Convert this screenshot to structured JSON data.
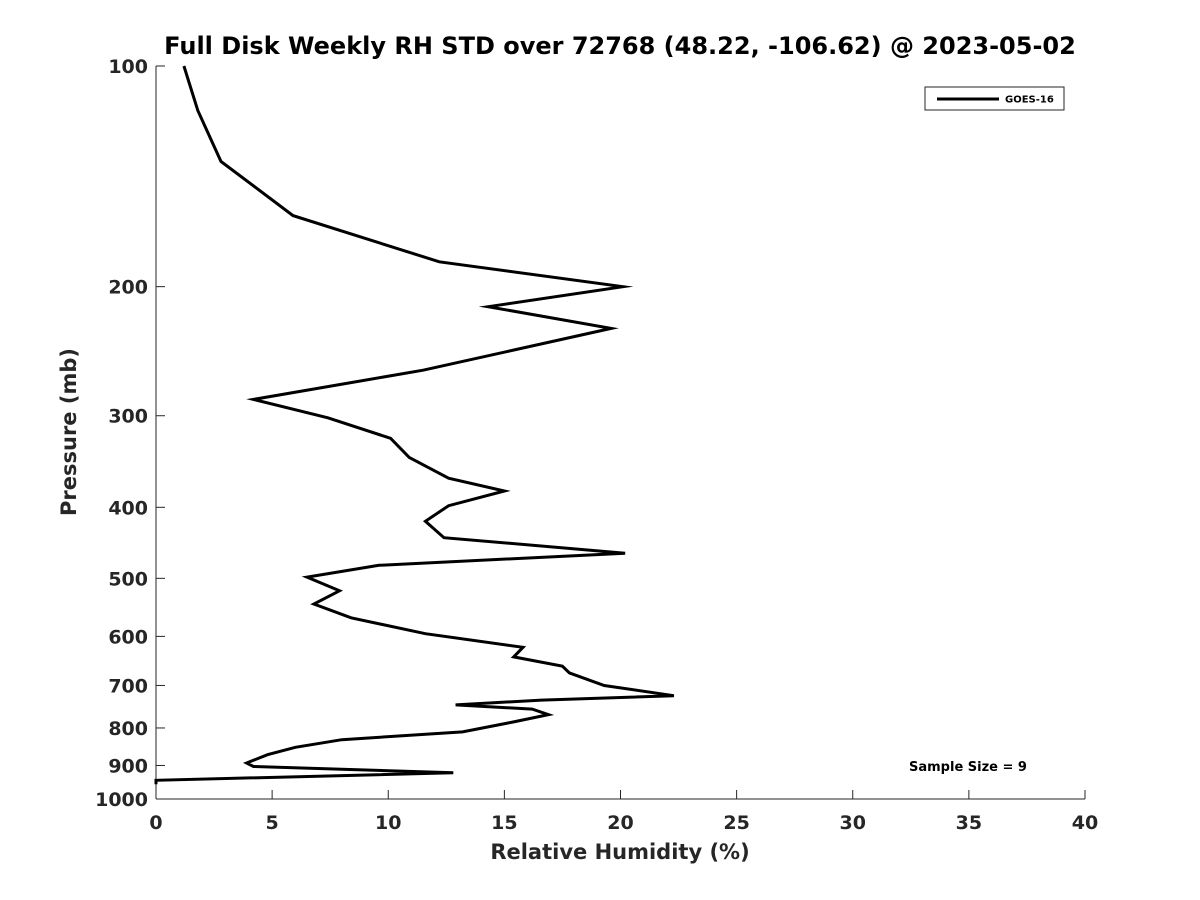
{
  "chart_data": {
    "type": "line",
    "title": "Full Disk Weekly RH STD over 72768 (48.22, -106.62) @ 2023-05-02",
    "xlabel": "Relative Humidity (%)",
    "ylabel": "Pressure (mb)",
    "xlim": [
      0,
      40
    ],
    "ylim": [
      100,
      1000
    ],
    "y_scale": "log",
    "y_reversed": true,
    "x_ticks": [
      0,
      5,
      10,
      15,
      20,
      25,
      30,
      35,
      40
    ],
    "y_ticks": [
      100,
      200,
      300,
      400,
      500,
      600,
      700,
      800,
      900,
      1000
    ],
    "grid": false,
    "legend_position": "top-right",
    "annotation": "Sample Size = 9",
    "series": [
      {
        "name": "GOES-16",
        "color": "#000000",
        "points": [
          [
            1.2,
            100
          ],
          [
            1.8,
            115
          ],
          [
            2.8,
            135
          ],
          [
            5.9,
            160
          ],
          [
            12.2,
            185
          ],
          [
            20.1,
            200
          ],
          [
            14.3,
            213
          ],
          [
            19.6,
            228
          ],
          [
            11.5,
            260
          ],
          [
            4.2,
            285
          ],
          [
            7.4,
            302
          ],
          [
            10.1,
            322
          ],
          [
            10.9,
            342
          ],
          [
            12.6,
            365
          ],
          [
            15.0,
            380
          ],
          [
            12.6,
            398
          ],
          [
            11.6,
            418
          ],
          [
            12.4,
            440
          ],
          [
            20.2,
            462
          ],
          [
            9.6,
            480
          ],
          [
            6.5,
            498
          ],
          [
            7.9,
            520
          ],
          [
            6.8,
            542
          ],
          [
            8.4,
            566
          ],
          [
            11.6,
            595
          ],
          [
            15.8,
            621
          ],
          [
            15.4,
            640
          ],
          [
            17.5,
            659
          ],
          [
            17.8,
            673
          ],
          [
            19.3,
            700
          ],
          [
            22.3,
            723
          ],
          [
            16.6,
            733
          ],
          [
            12.9,
            744
          ],
          [
            16.2,
            754
          ],
          [
            16.9,
            767
          ],
          [
            15.4,
            785
          ],
          [
            13.2,
            810
          ],
          [
            8.0,
            830
          ],
          [
            6.0,
            850
          ],
          [
            4.8,
            870
          ],
          [
            3.9,
            893
          ],
          [
            4.2,
            903
          ],
          [
            12.8,
            921
          ],
          [
            0.0,
            943
          ],
          [
            0.0,
            955
          ]
        ]
      }
    ]
  }
}
